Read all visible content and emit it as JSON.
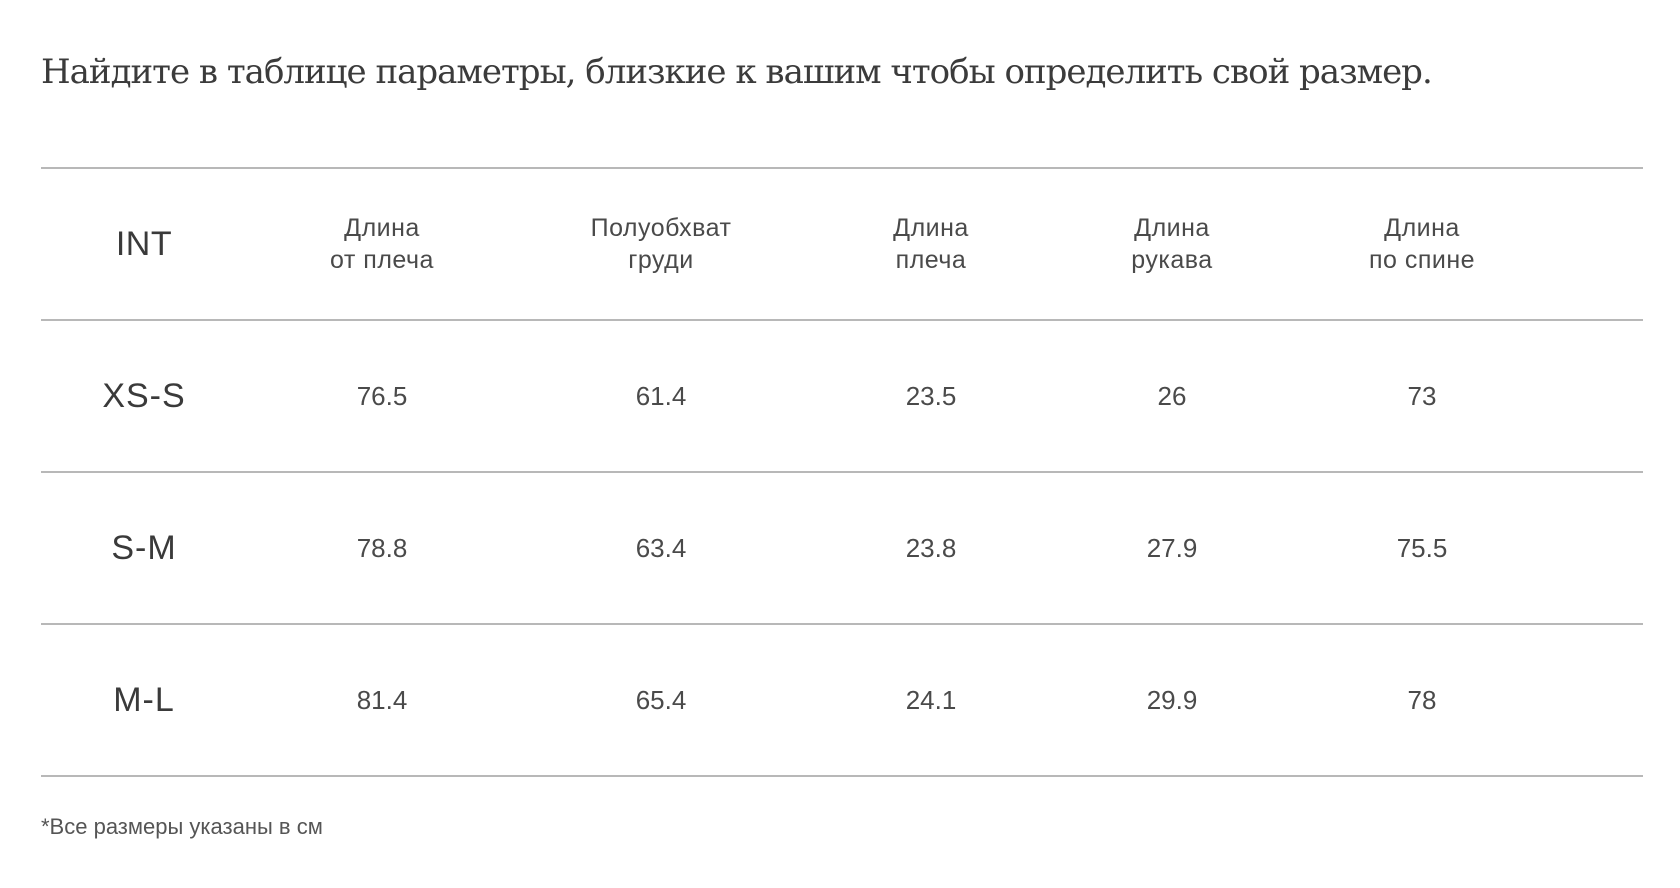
{
  "intro": "Найдите в таблице параметры, близкие к вашим чтобы определить свой размер.",
  "table": {
    "headers": [
      {
        "line1": "INT",
        "line2": ""
      },
      {
        "line1": "Длина",
        "line2": "от плеча"
      },
      {
        "line1": "Полуобхват",
        "line2": "груди"
      },
      {
        "line1": "Длина",
        "line2": "плеча"
      },
      {
        "line1": "Длина",
        "line2": "рукава"
      },
      {
        "line1": "Длина",
        "line2": "по спине"
      }
    ],
    "rows": [
      [
        "XS-S",
        "76.5",
        "61.4",
        "23.5",
        "26",
        "73"
      ],
      [
        "S-M",
        "78.8",
        "63.4",
        "23.8",
        "27.9",
        "75.5"
      ],
      [
        "M-L",
        "81.4",
        "65.4",
        "24.1",
        "29.9",
        "78"
      ]
    ]
  },
  "note": "*Все размеры указаны в см"
}
